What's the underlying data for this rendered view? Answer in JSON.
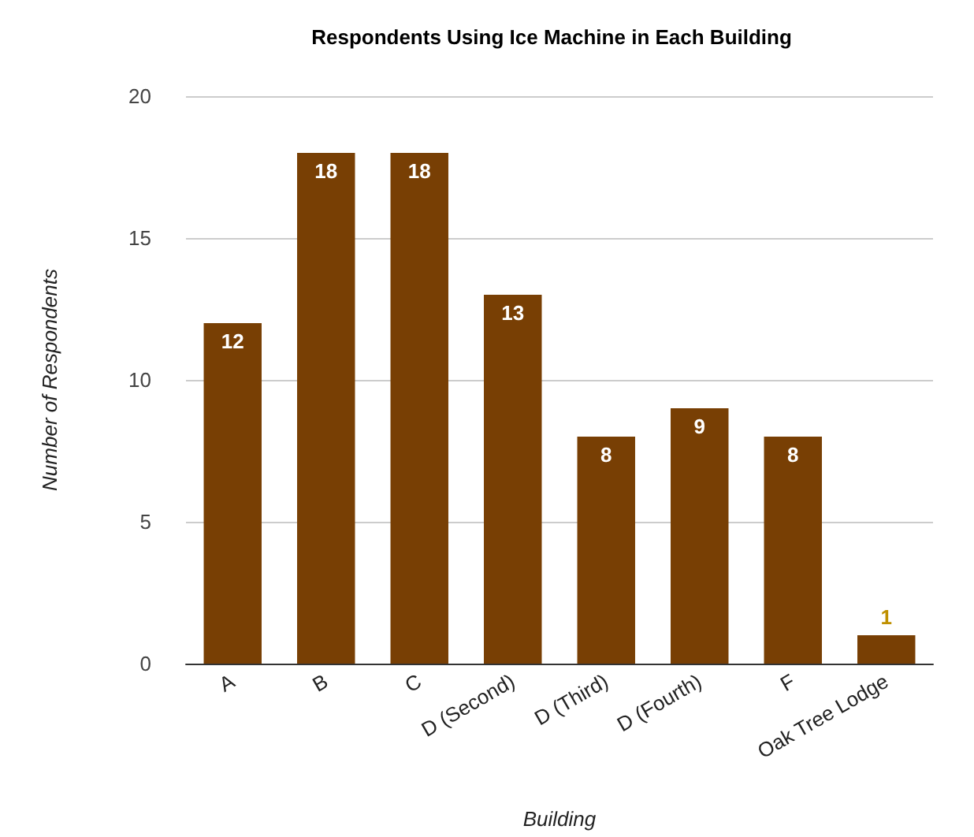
{
  "chart_data": {
    "type": "bar",
    "title": "Respondents Using Ice Machine in Each Building",
    "xlabel": "Building",
    "ylabel": "Number of Respondents",
    "categories": [
      "A",
      "B",
      "C",
      "D (Second)",
      "D (Third)",
      "D (Fourth)",
      "F",
      "Oak Tree Lodge"
    ],
    "values": [
      12,
      18,
      18,
      13,
      8,
      9,
      8,
      1
    ],
    "color": "#783f04",
    "ylim": [
      0,
      20
    ],
    "yticks": [
      0,
      5,
      10,
      15,
      20
    ],
    "grid": "y",
    "data_labels": true
  }
}
